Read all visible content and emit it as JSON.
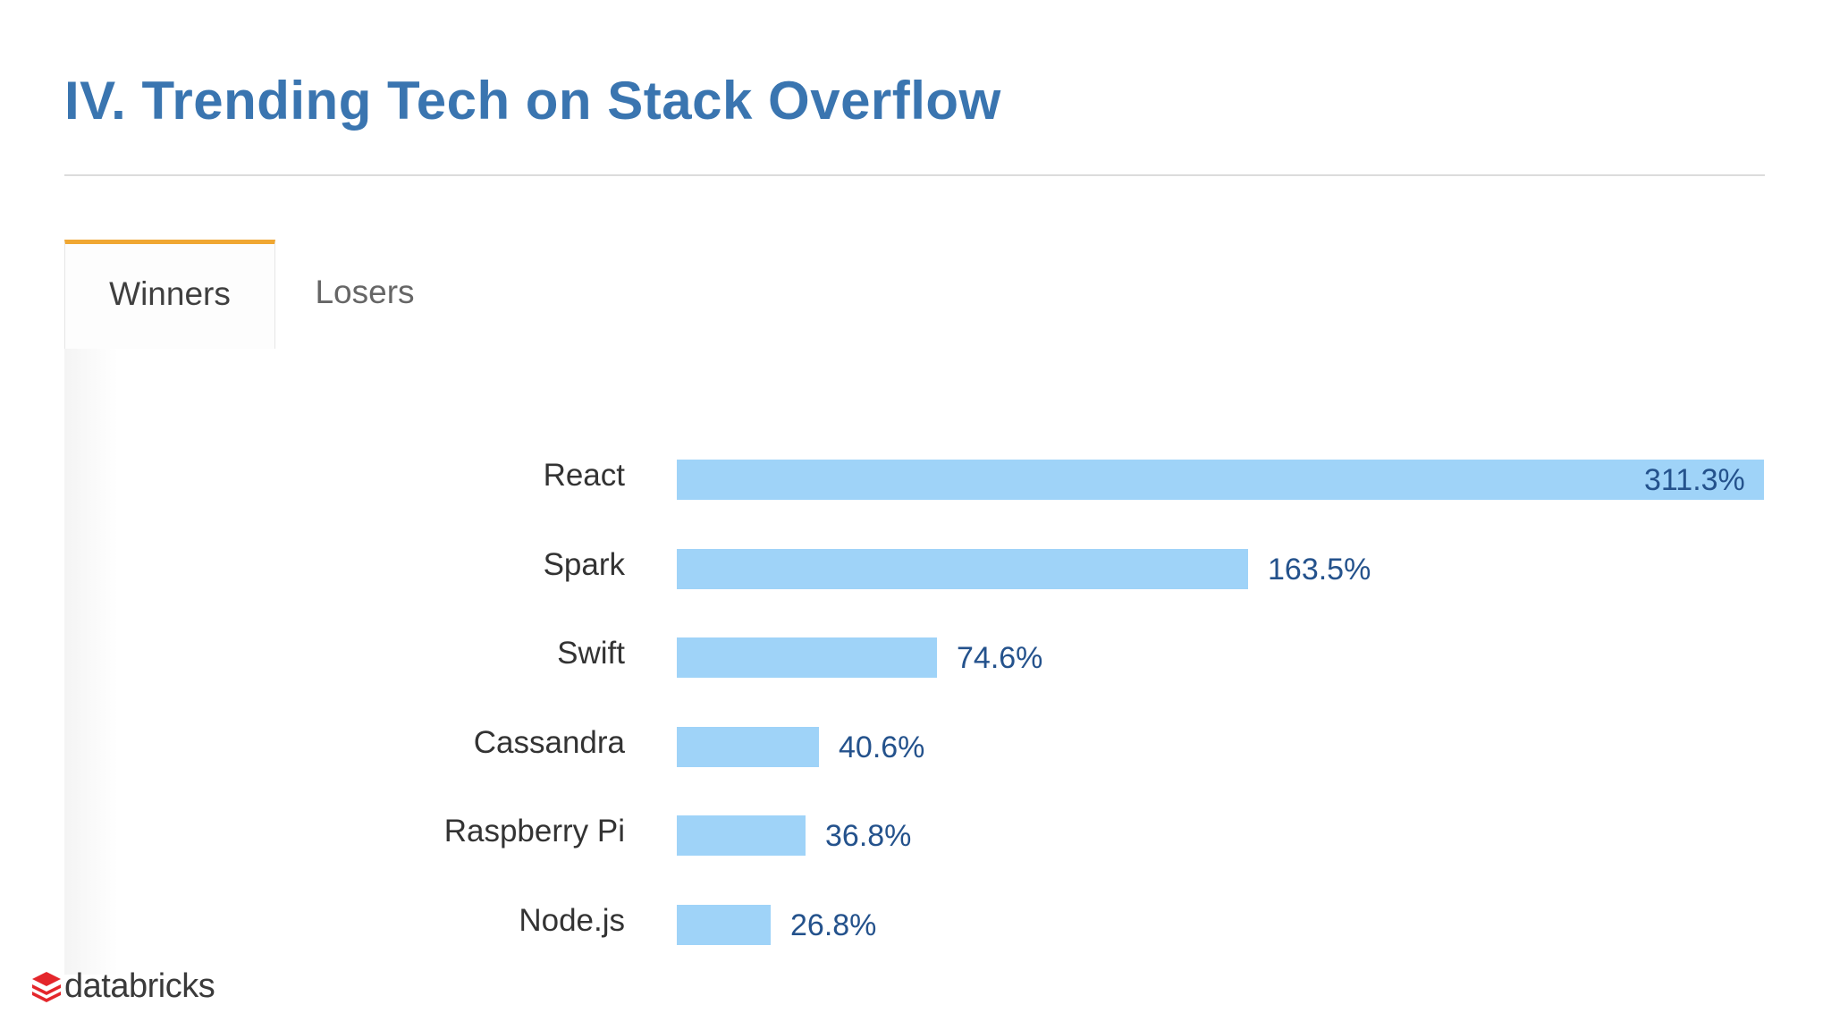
{
  "slide": {
    "title": "IV. Trending Tech on Stack Overflow"
  },
  "tabs": [
    {
      "label": "Winners",
      "active": true
    },
    {
      "label": "Losers",
      "active": false
    }
  ],
  "chart_data": {
    "type": "bar",
    "orientation": "horizontal",
    "title": "",
    "categories": [
      "React",
      "Spark",
      "Swift",
      "Cassandra",
      "Raspberry Pi",
      "Node.js"
    ],
    "values": [
      311.3,
      163.5,
      74.6,
      40.6,
      36.8,
      26.8
    ],
    "value_labels": [
      "311.3%",
      "163.5%",
      "74.6%",
      "40.6%",
      "36.8%",
      "26.8%"
    ],
    "xlabel": "",
    "ylabel": "",
    "xlim": [
      0,
      311.3
    ],
    "grid": false,
    "legend": "none"
  },
  "colors": {
    "title": "#3a75b0",
    "bar": "#9fd3f8",
    "value_label": "#24528c",
    "tab_accent": "#f0a732",
    "logo_mark": "#e4262b"
  },
  "footer": {
    "logo_text": "databricks",
    "logo_icon": "databricks-stack-icon"
  }
}
